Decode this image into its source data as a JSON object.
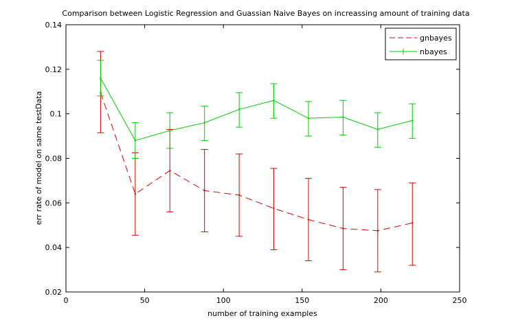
{
  "chart_data": {
    "type": "line",
    "title": "Comparison between Logistic Regression and Guassian Naive Bayes on increassing amount of training data",
    "xlabel": "number of training examples",
    "ylabel": "err rate of model on same testData",
    "xlim": [
      0,
      250
    ],
    "ylim": [
      0.02,
      0.14
    ],
    "xticks": [
      0,
      50,
      100,
      150,
      200,
      250
    ],
    "yticks": [
      0.02,
      0.04,
      0.06,
      0.08,
      0.1,
      0.12,
      0.14
    ],
    "xtick_labels": [
      "0",
      "50",
      "100",
      "150",
      "200",
      "250"
    ],
    "ytick_labels": [
      "0.02",
      "0.04",
      "0.06",
      "0.08",
      "0.1",
      "0.12",
      "0.14"
    ],
    "x": [
      22,
      44,
      66,
      88,
      110,
      132,
      154,
      176,
      198,
      220
    ],
    "legend_position": "top-right",
    "grid": false,
    "series": [
      {
        "name": "gnbayes",
        "color": "#dd0000",
        "dash": "dashed",
        "y": [
          0.1095,
          0.064,
          0.0745,
          0.0655,
          0.0635,
          0.0575,
          0.0525,
          0.0485,
          0.0475,
          0.051
        ],
        "lower": [
          0.0915,
          0.0455,
          0.056,
          0.047,
          0.045,
          0.039,
          0.034,
          0.03,
          0.029,
          0.032
        ],
        "upper": [
          0.128,
          0.0825,
          0.093,
          0.084,
          0.082,
          0.0755,
          0.071,
          0.067,
          0.066,
          0.069
        ]
      },
      {
        "name": "nbayes",
        "color": "#00cc00",
        "dash": "solid",
        "y": [
          0.116,
          0.088,
          0.0925,
          0.096,
          0.102,
          0.106,
          0.098,
          0.0985,
          0.093,
          0.097
        ],
        "lower": [
          0.108,
          0.08,
          0.0845,
          0.088,
          0.094,
          0.098,
          0.09,
          0.0905,
          0.085,
          0.089
        ],
        "upper": [
          0.124,
          0.096,
          0.1005,
          0.1035,
          0.1095,
          0.1135,
          0.1055,
          0.106,
          0.1005,
          0.1045
        ]
      }
    ]
  }
}
